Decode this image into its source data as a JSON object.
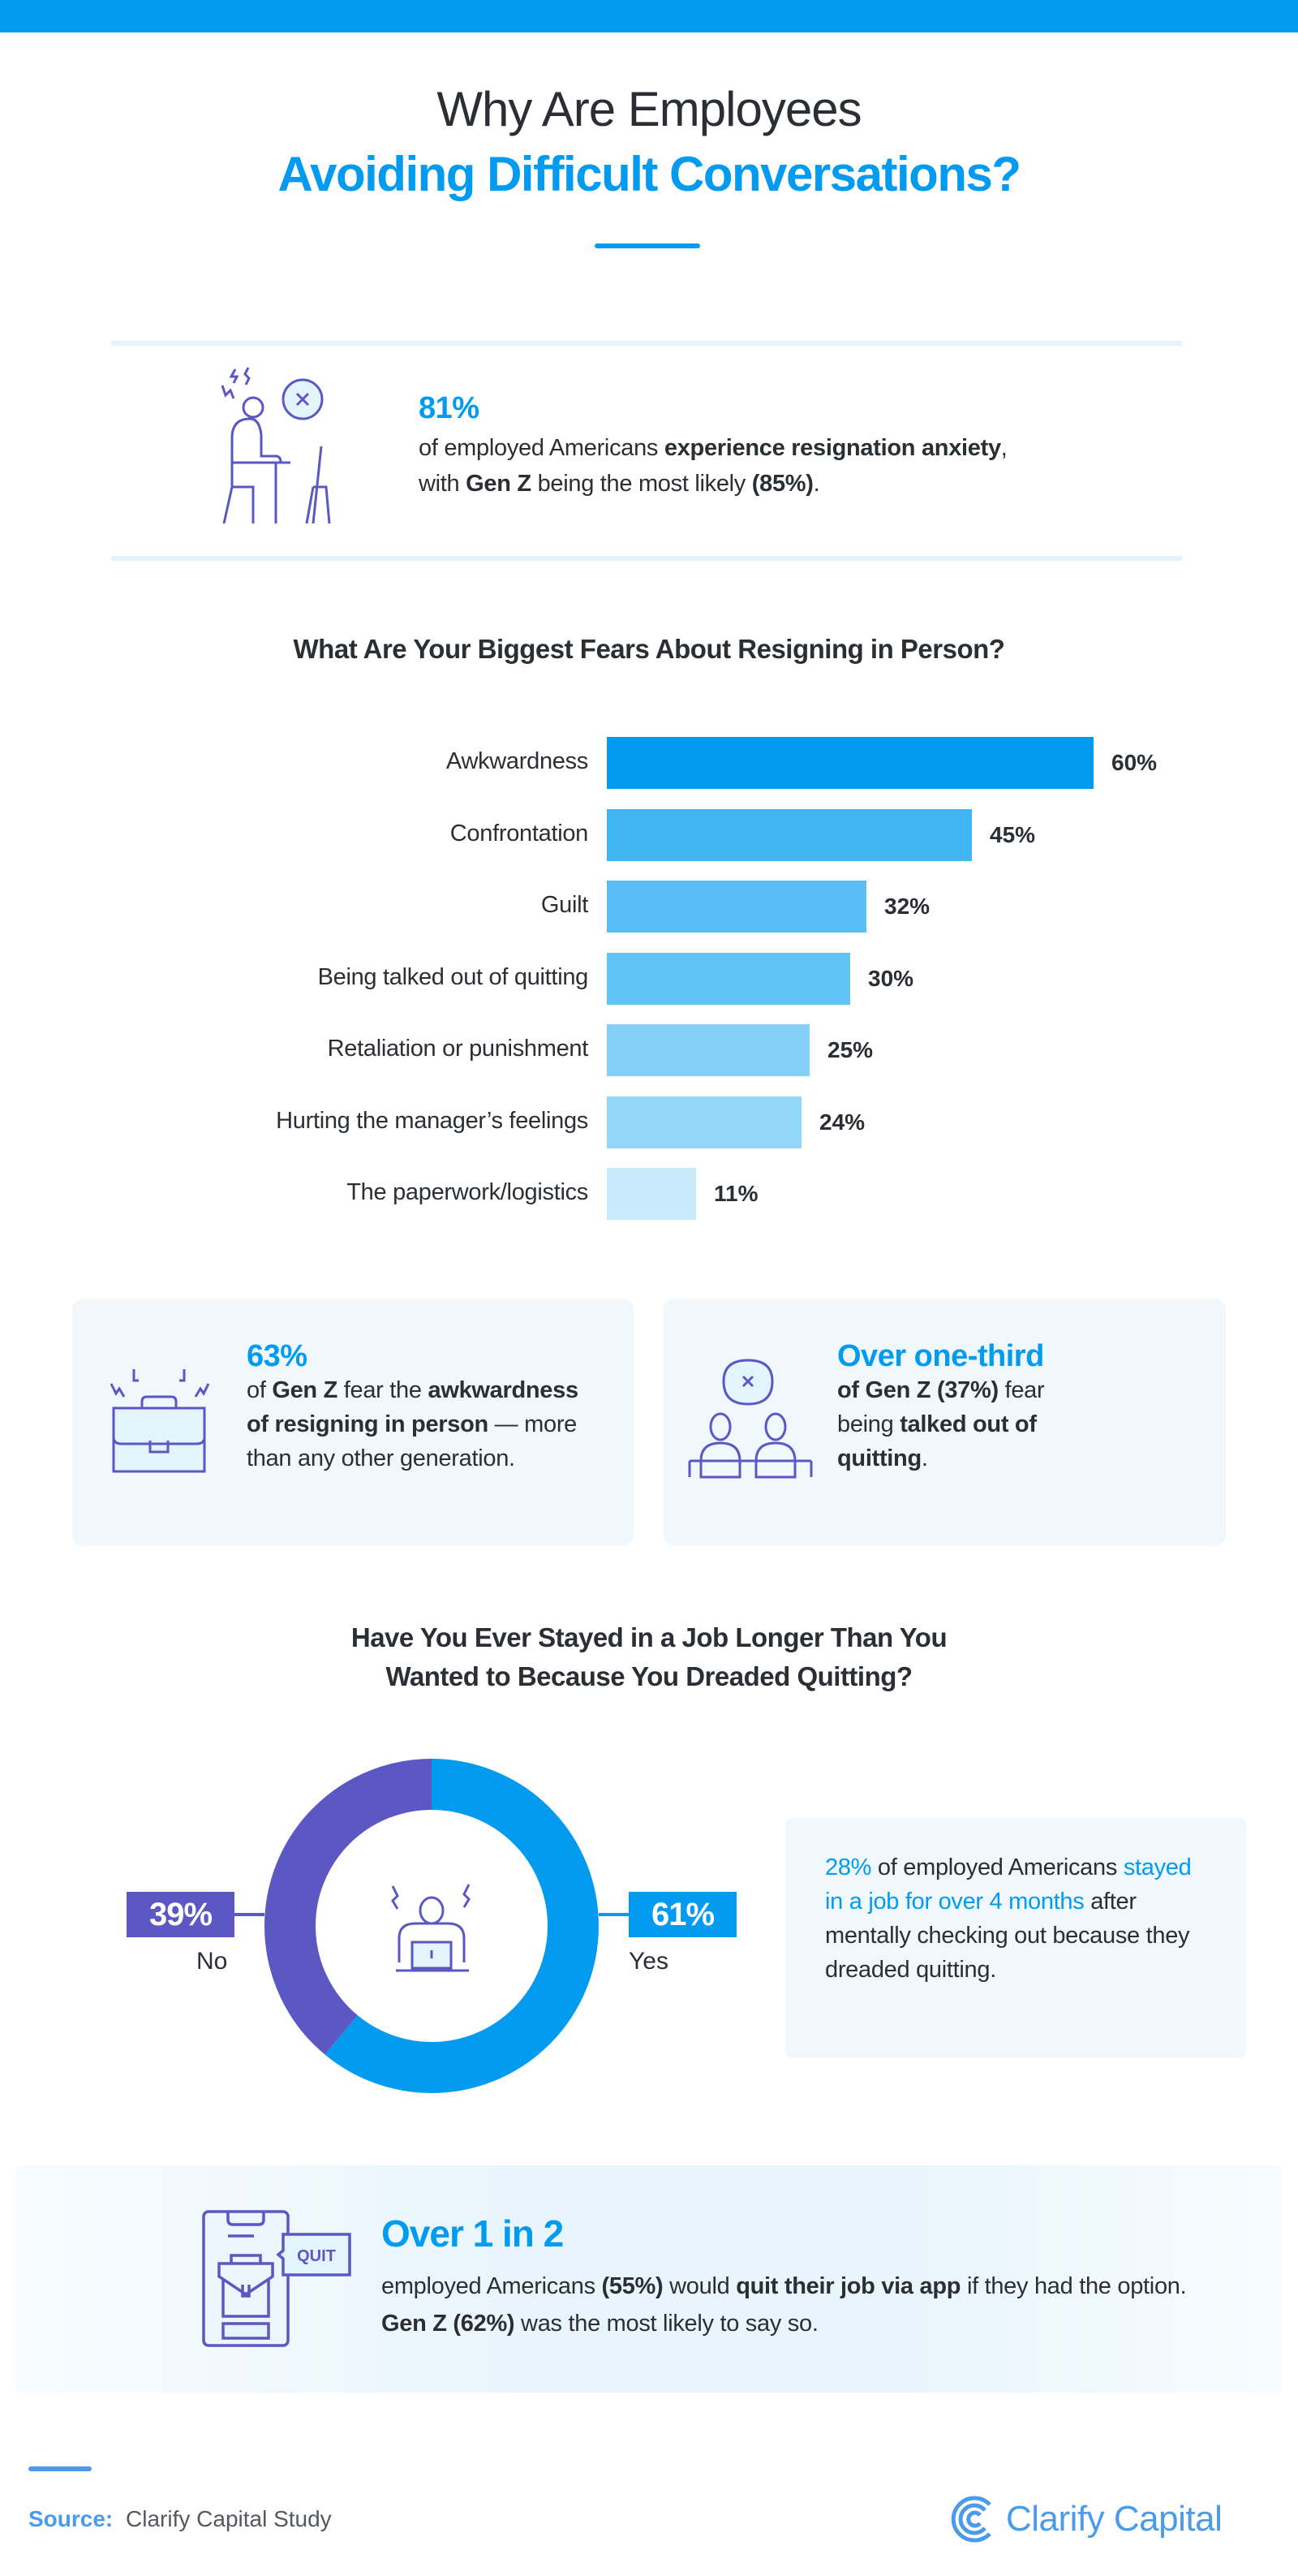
{
  "colors": {
    "accent": "#039BEF",
    "purple": "#5B57C3",
    "text": "#2B2F33",
    "light_bg": "#F0F8FD"
  },
  "title": {
    "line1": "Why Are Employees",
    "line2": "Avoiding Difficult Conversations?"
  },
  "stat1": {
    "icon": "stressed-person-at-desk-icon",
    "big": "81%",
    "text": [
      {
        "t": "of employed Americans "
      },
      {
        "t": "experience resignation anxiety",
        "b": true
      },
      {
        "t": ", with "
      },
      {
        "t": "Gen Z",
        "b": true
      },
      {
        "t": " being the most likely "
      },
      {
        "t": "(85%)",
        "b": true
      },
      {
        "t": "."
      }
    ]
  },
  "chart_data": [
    {
      "type": "bar",
      "orientation": "horizontal",
      "title": "What Are Your Biggest Fears About Resigning in Person?",
      "categories": [
        "Awkwardness",
        "Confrontation",
        "Guilt",
        "Being talked out of quitting",
        "Retaliation or punishment",
        "Hurting the manager’s feelings",
        "The paperwork/logistics"
      ],
      "values": [
        60,
        45,
        32,
        30,
        25,
        24,
        11
      ],
      "value_labels": [
        "60%",
        "45%",
        "32%",
        "30%",
        "25%",
        "24%",
        "11%"
      ],
      "bar_colors": [
        "#039BEF",
        "#41B6F4",
        "#58BEF5",
        "#62C3F6",
        "#83CFF7",
        "#94D6F8",
        "#C9EAFB"
      ],
      "unit": "%",
      "grid": false
    },
    {
      "type": "pie",
      "variant": "donut",
      "title": "Have You Ever Stayed in a Job Longer Than You Wanted to Because You Dreaded Quitting?",
      "title_lines": [
        "Have You Ever Stayed in a Job Longer Than You",
        "Wanted to Because You Dreaded Quitting?"
      ],
      "slices": [
        {
          "label": "Yes",
          "value": 61,
          "display": "61%",
          "color": "#039BEF"
        },
        {
          "label": "No",
          "value": 39,
          "display": "39%",
          "color": "#5B57C3"
        }
      ],
      "center_icon": "frustrated-person-laptop-icon"
    }
  ],
  "card1": {
    "icon": "briefcase-stress-icon",
    "big": "63%",
    "text": [
      {
        "t": "of "
      },
      {
        "t": "Gen Z",
        "b": true
      },
      {
        "t": " fear the "
      },
      {
        "t": "awkwardness of resigning in person",
        "b": true
      },
      {
        "t": " — more than any other generation."
      }
    ]
  },
  "card2": {
    "icon": "two-people-conversation-icon",
    "big": "Over one-third",
    "text": [
      {
        "t": "of Gen Z (37%)",
        "b": true
      },
      {
        "t": " fear being "
      },
      {
        "t": "talked out of quitting",
        "b": true
      },
      {
        "t": "."
      }
    ]
  },
  "info": {
    "text": [
      {
        "t": "28%",
        "a": true
      },
      {
        "t": " of employed Americans "
      },
      {
        "t": "stayed in a job for over 4 months",
        "a": true
      },
      {
        "t": " after mentally checking out because they dreaded quitting."
      }
    ]
  },
  "banner": {
    "icon": "phone-quit-app-icon",
    "icon_label": "QUIT",
    "big": "Over 1 in 2",
    "text": [
      {
        "t": "employed Americans "
      },
      {
        "t": "(55%)",
        "b": true
      },
      {
        "t": " would "
      },
      {
        "t": "quit their job via app",
        "b": true
      },
      {
        "t": " if they had the option. "
      },
      {
        "t": "Gen Z (62%)",
        "b": true
      },
      {
        "t": " was the most likely to say so."
      }
    ]
  },
  "footer": {
    "source_label": "Source:",
    "source_text": "Clarify Capital Study",
    "logo_text": "Clarify Capital"
  }
}
